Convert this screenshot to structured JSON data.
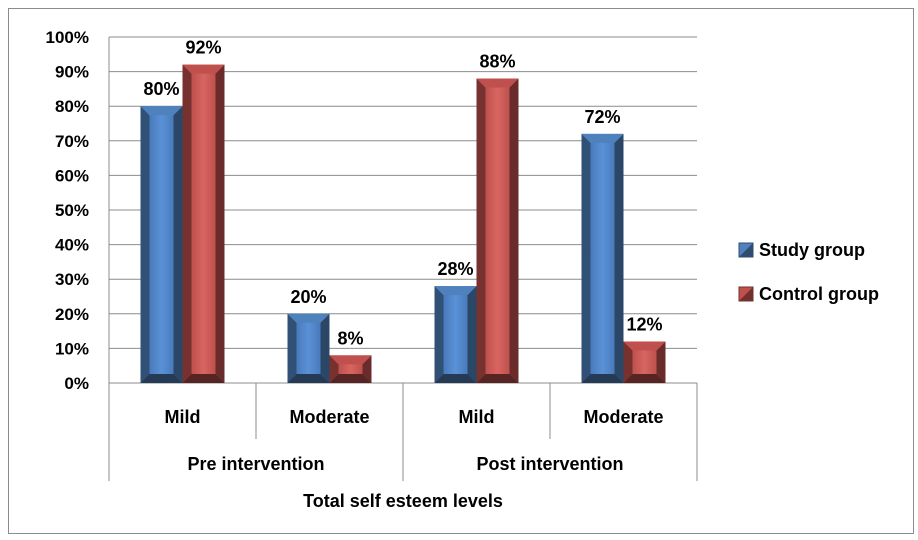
{
  "chart_data": {
    "type": "bar",
    "title": "",
    "xlabel": "Total self esteem levels",
    "ylabel": "",
    "ylim": [
      0,
      100
    ],
    "y_ticks": [
      "0%",
      "10%",
      "20%",
      "30%",
      "40%",
      "50%",
      "60%",
      "70%",
      "80%",
      "90%",
      "100%"
    ],
    "groups": [
      {
        "label": "Pre intervention",
        "categories": [
          "Mild",
          "Moderate"
        ]
      },
      {
        "label": "Post intervention",
        "categories": [
          "Mild",
          "Moderate"
        ]
      }
    ],
    "categories": [
      "Mild",
      "Moderate",
      "Mild",
      "Moderate"
    ],
    "series": [
      {
        "name": "Study group",
        "values": [
          80,
          20,
          28,
          72
        ],
        "labels": [
          "80%",
          "20%",
          "28%",
          "72%"
        ],
        "color": "#4F81BD"
      },
      {
        "name": "Control group",
        "values": [
          92,
          8,
          88,
          12
        ],
        "labels": [
          "92%",
          "8%",
          "88%",
          "12%"
        ],
        "color": "#C0504D"
      }
    ],
    "grid": true,
    "legend_position": "right"
  }
}
